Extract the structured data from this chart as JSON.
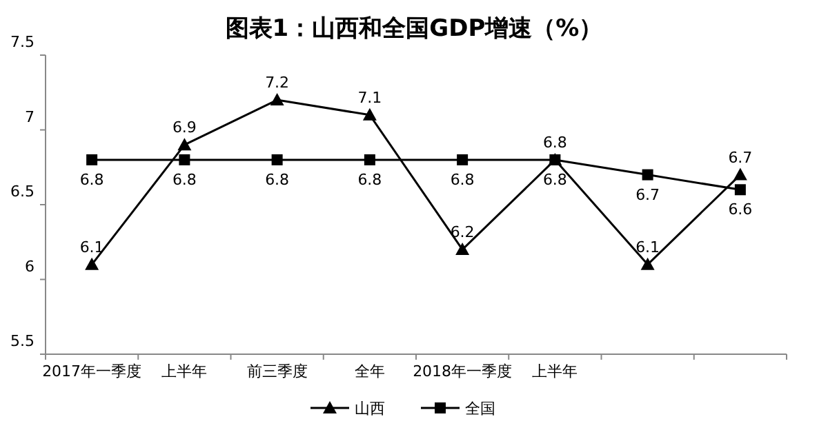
{
  "chart_data": {
    "type": "line",
    "title": "图表1：山西和全国GDP增速（%）",
    "categories": [
      "2017年一季度",
      "上半年",
      "前三季度",
      "全年",
      "2018年一季度",
      "上半年",
      null,
      null
    ],
    "series": [
      {
        "name": "山西",
        "color": "#000000",
        "marker": "triangle",
        "values": [
          6.1,
          6.9,
          7.2,
          7.1,
          6.2,
          6.8,
          6.1,
          6.7
        ]
      },
      {
        "name": "全国",
        "color": "#000000",
        "marker": "square",
        "values": [
          6.8,
          6.8,
          6.8,
          6.8,
          6.8,
          6.8,
          6.7,
          6.6
        ]
      }
    ],
    "ylim": [
      5.5,
      7.5
    ],
    "yticks": [
      5.5,
      6,
      6.5,
      7,
      7.5
    ],
    "data_labels": true,
    "grid": false,
    "legend": "bottom",
    "line_style": "solid"
  }
}
